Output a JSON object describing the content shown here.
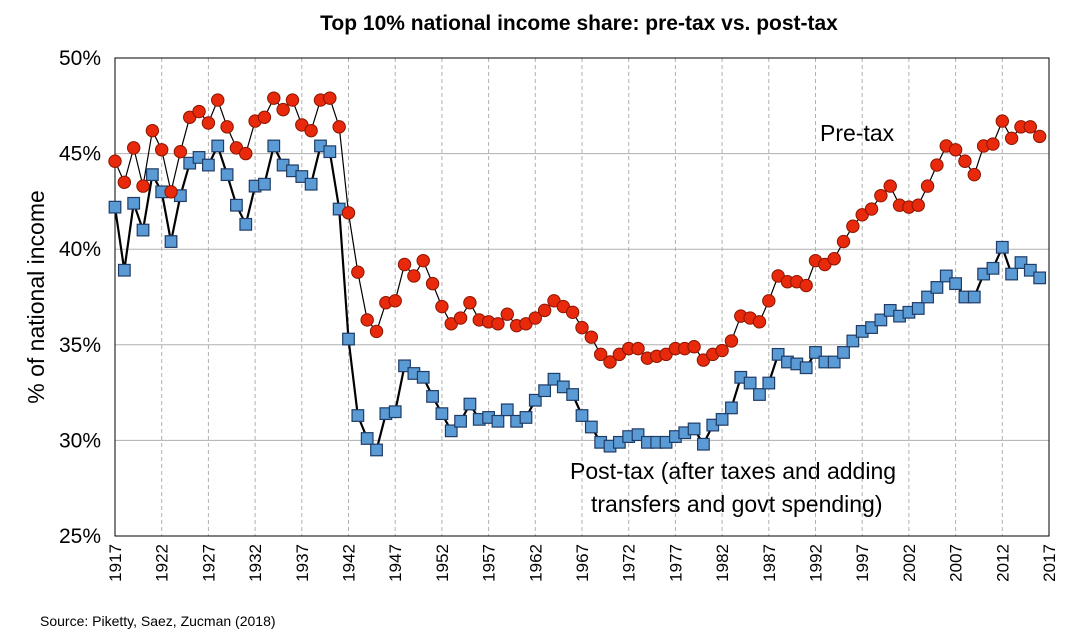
{
  "chart_data": {
    "type": "line",
    "title": "Top 10% national income share: pre-tax vs. post-tax",
    "ylabel": "% of national income",
    "xlabel": "",
    "ylim": [
      25,
      50
    ],
    "xlim": [
      1917,
      2017
    ],
    "yticks": [
      "25%",
      "30%",
      "35%",
      "40%",
      "45%",
      "50%"
    ],
    "xticks": [
      "1917",
      "1922",
      "1927",
      "1932",
      "1937",
      "1942",
      "1947",
      "1952",
      "1957",
      "1962",
      "1967",
      "1972",
      "1977",
      "1982",
      "1987",
      "1992",
      "1997",
      "2002",
      "2007",
      "2012",
      "2017"
    ],
    "grid": true,
    "colors": {
      "pretax_fill": "#e8290b",
      "pretax_stroke": "#8a1500",
      "posttax_fill": "#5b9bd5",
      "posttax_stroke": "#1f3c66",
      "line": "#000000",
      "grid": "#b0b0b0"
    },
    "x": [
      1917,
      1918,
      1919,
      1920,
      1921,
      1922,
      1923,
      1924,
      1925,
      1926,
      1927,
      1928,
      1929,
      1930,
      1931,
      1932,
      1933,
      1934,
      1935,
      1936,
      1937,
      1938,
      1939,
      1940,
      1941,
      1942,
      1943,
      1944,
      1945,
      1946,
      1947,
      1948,
      1949,
      1950,
      1951,
      1952,
      1953,
      1954,
      1955,
      1956,
      1957,
      1958,
      1959,
      1960,
      1961,
      1962,
      1963,
      1964,
      1965,
      1966,
      1967,
      1968,
      1969,
      1970,
      1971,
      1972,
      1973,
      1974,
      1975,
      1976,
      1977,
      1978,
      1979,
      1980,
      1981,
      1982,
      1983,
      1984,
      1985,
      1986,
      1987,
      1988,
      1989,
      1990,
      1991,
      1992,
      1993,
      1994,
      1995,
      1996,
      1997,
      1998,
      1999,
      2000,
      2001,
      2002,
      2003,
      2004,
      2005,
      2006,
      2007,
      2008,
      2009,
      2010,
      2011,
      2012,
      2013,
      2014,
      2015,
      2016
    ],
    "series": [
      {
        "name": "Pre-tax",
        "marker": "circle",
        "values": [
          44.6,
          43.5,
          45.3,
          43.3,
          46.2,
          45.2,
          43.0,
          45.1,
          46.9,
          47.2,
          46.6,
          47.8,
          46.4,
          45.3,
          45.0,
          46.7,
          46.9,
          47.9,
          47.3,
          47.8,
          46.5,
          46.2,
          47.8,
          47.9,
          46.4,
          41.9,
          38.8,
          36.3,
          35.7,
          37.2,
          37.3,
          39.2,
          38.6,
          39.4,
          38.2,
          37.0,
          36.1,
          36.4,
          37.2,
          36.3,
          36.2,
          36.1,
          36.6,
          36.0,
          36.1,
          36.4,
          36.8,
          37.3,
          37.0,
          36.7,
          35.9,
          35.4,
          34.5,
          34.1,
          34.5,
          34.8,
          34.8,
          34.3,
          34.4,
          34.5,
          34.8,
          34.8,
          34.9,
          34.2,
          34.5,
          34.7,
          35.2,
          36.5,
          36.4,
          36.2,
          37.3,
          38.6,
          38.3,
          38.3,
          38.1,
          39.4,
          39.2,
          39.5,
          40.4,
          41.2,
          41.8,
          42.1,
          42.8,
          43.3,
          42.3,
          42.2,
          42.3,
          43.3,
          44.4,
          45.4,
          45.2,
          44.6,
          43.9,
          45.4,
          45.5,
          46.7,
          45.8,
          46.4,
          46.4,
          45.9
        ]
      },
      {
        "name": "Post-tax (after taxes and adding transfers and govt spending)",
        "marker": "square",
        "values": [
          42.2,
          38.9,
          42.4,
          41.0,
          43.9,
          43.0,
          40.4,
          42.8,
          44.5,
          44.8,
          44.4,
          45.4,
          43.9,
          42.3,
          41.3,
          43.3,
          43.4,
          45.4,
          44.4,
          44.1,
          43.8,
          43.4,
          45.4,
          45.1,
          42.1,
          35.3,
          31.3,
          30.1,
          29.5,
          31.4,
          31.5,
          33.9,
          33.5,
          33.3,
          32.3,
          31.4,
          30.5,
          31.0,
          31.9,
          31.1,
          31.2,
          31.0,
          31.6,
          31.0,
          31.2,
          32.1,
          32.6,
          33.2,
          32.8,
          32.4,
          31.3,
          30.7,
          29.9,
          29.7,
          29.9,
          30.2,
          30.3,
          29.9,
          29.9,
          29.9,
          30.2,
          30.4,
          30.6,
          29.8,
          30.8,
          31.1,
          31.7,
          33.3,
          33.0,
          32.4,
          33.0,
          34.5,
          34.1,
          34.0,
          33.8,
          34.6,
          34.1,
          34.1,
          34.6,
          35.2,
          35.7,
          35.9,
          36.3,
          36.8,
          36.5,
          36.7,
          36.9,
          37.5,
          38.0,
          38.6,
          38.2,
          37.5,
          37.5,
          38.7,
          39.0,
          40.1,
          38.7,
          39.3,
          38.9,
          38.5
        ]
      }
    ],
    "annotations": [
      "Pre-tax",
      "Post-tax (after taxes and adding",
      "transfers and govt spending)"
    ]
  },
  "source": "Source: Piketty, Saez, Zucman (2018)"
}
